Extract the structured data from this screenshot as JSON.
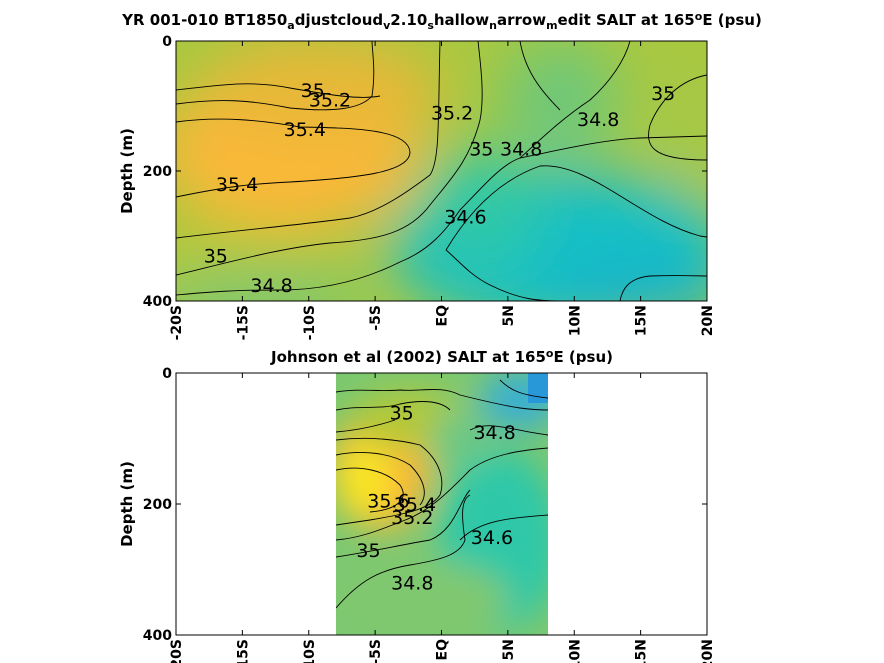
{
  "chart_data": [
    {
      "type": "heatmap",
      "title": {
        "parts": [
          {
            "t": "YR 001-010 BT1850",
            "s": "n"
          },
          {
            "t": "a",
            "s": "sub"
          },
          {
            "t": "djustcloud",
            "s": "n"
          },
          {
            "t": "v",
            "s": "sub"
          },
          {
            "t": "2.10",
            "s": "n"
          },
          {
            "t": "s",
            "s": "sub"
          },
          {
            "t": "hallow",
            "s": "n"
          },
          {
            "t": "n",
            "s": "sub"
          },
          {
            "t": "arrow",
            "s": "n"
          },
          {
            "t": "m",
            "s": "sub"
          },
          {
            "t": "edit SALT at 165",
            "s": "n"
          },
          {
            "t": "o",
            "s": "sup"
          },
          {
            "t": "E (psu)",
            "s": "n"
          }
        ]
      },
      "ylabel": "Depth (m)",
      "xlim": [
        -20,
        20
      ],
      "ylim": [
        0,
        400
      ],
      "y_reversed": true,
      "xticks": [
        -20,
        -15,
        -10,
        -5,
        0,
        5,
        10,
        15,
        20
      ],
      "xticklabels": [
        "-20S",
        "-15S",
        "-10S",
        "-5S",
        "EQ",
        "5N",
        "10N",
        "15N",
        "20N"
      ],
      "yticks": [
        0,
        200,
        400
      ],
      "yticklabels": [
        "0",
        "200",
        "400"
      ],
      "colorscale": [
        "#1890d8",
        "#16b8cc",
        "#2ec8a8",
        "#7cc870",
        "#b4c838",
        "#e8b838",
        "#fbb838",
        "#f8e820"
      ],
      "contour_levels": [
        34.6,
        34.8,
        35,
        35.2,
        35.4
      ],
      "contour_labels": [
        {
          "text": "35",
          "x": -9.7,
          "y": 75
        },
        {
          "text": "35.2",
          "x": -8.4,
          "y": 90
        },
        {
          "text": "35.4",
          "x": -10.3,
          "y": 135
        },
        {
          "text": "35.4",
          "x": -15.4,
          "y": 220
        },
        {
          "text": "35",
          "x": -17.0,
          "y": 330
        },
        {
          "text": "34.8",
          "x": -12.8,
          "y": 375
        },
        {
          "text": "35.2",
          "x": 0.8,
          "y": 110
        },
        {
          "text": "35",
          "x": 3.0,
          "y": 165
        },
        {
          "text": "34.8",
          "x": 6.0,
          "y": 165
        },
        {
          "text": "34.6",
          "x": 1.8,
          "y": 270
        },
        {
          "text": "34.8",
          "x": 11.8,
          "y": 120
        },
        {
          "text": "35",
          "x": 16.7,
          "y": 80
        }
      ]
    },
    {
      "type": "heatmap",
      "title": {
        "parts": [
          {
            "t": "Johnson et al (2002) SALT at 165",
            "s": "n"
          },
          {
            "t": "o",
            "s": "sup"
          },
          {
            "t": "E (psu)",
            "s": "n"
          }
        ]
      },
      "ylabel": "Depth (m)",
      "xlim": [
        -20,
        20
      ],
      "ylim": [
        0,
        400
      ],
      "y_reversed": true,
      "data_xrange": [
        -8,
        8
      ],
      "xticks": [
        -20,
        -15,
        -10,
        -5,
        0,
        5,
        10,
        15,
        20
      ],
      "xticklabels": [
        "-20S",
        "-15S",
        "-10S",
        "-5S",
        "EQ",
        "5N",
        "10N",
        "15N",
        "20N"
      ],
      "yticks": [
        0,
        200,
        400
      ],
      "yticklabels": [
        "0",
        "200",
        "400"
      ],
      "colorscale": [
        "#1890d8",
        "#16b8cc",
        "#2ec8a8",
        "#7cc870",
        "#b4c838",
        "#e8b838",
        "#fbb838",
        "#f8e820"
      ],
      "contour_levels": [
        34.6,
        34.8,
        35,
        35.2,
        35.4,
        35.6
      ],
      "contour_labels": [
        {
          "text": "35",
          "x": -3.0,
          "y": 60
        },
        {
          "text": "34.8",
          "x": 4.0,
          "y": 90
        },
        {
          "text": "35.6",
          "x": -4.0,
          "y": 195
        },
        {
          "text": "35.4",
          "x": -2.0,
          "y": 200
        },
        {
          "text": "35.2",
          "x": -2.2,
          "y": 220
        },
        {
          "text": "35",
          "x": -5.5,
          "y": 270
        },
        {
          "text": "34.6",
          "x": 3.8,
          "y": 250
        },
        {
          "text": "34.8",
          "x": -2.2,
          "y": 320
        }
      ]
    }
  ]
}
